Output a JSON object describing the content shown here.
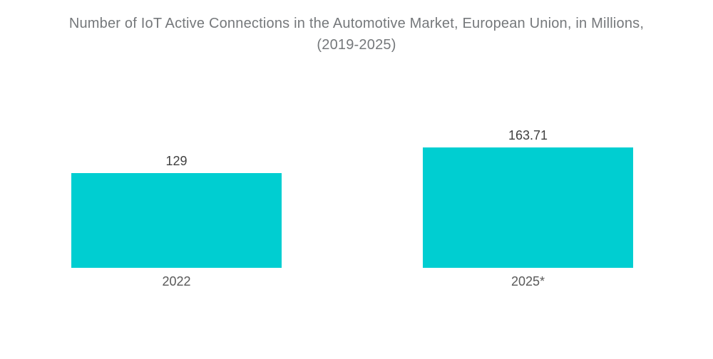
{
  "chart_data": {
    "type": "bar",
    "title": "Number of IoT Active Connections in the Automotive Market, European Union, in Millions, (2019-2025)",
    "title_lines": [
      "Number of IoT Active Connections in the Automotive Market, European Union, in Millions,",
      "(2019-2025)"
    ],
    "categories": [
      "2022",
      "2025*"
    ],
    "values": [
      129,
      163.71
    ],
    "value_labels": [
      "129",
      "163.71"
    ],
    "xlabel": "",
    "ylabel": "",
    "ylim": [
      0,
      200
    ],
    "grid": "off",
    "legend": "none",
    "bar_color": "#00CED1",
    "title_color": "#75787b",
    "value_label_color": "#404040",
    "category_label_color": "#595959",
    "background_color": "#ffffff"
  }
}
